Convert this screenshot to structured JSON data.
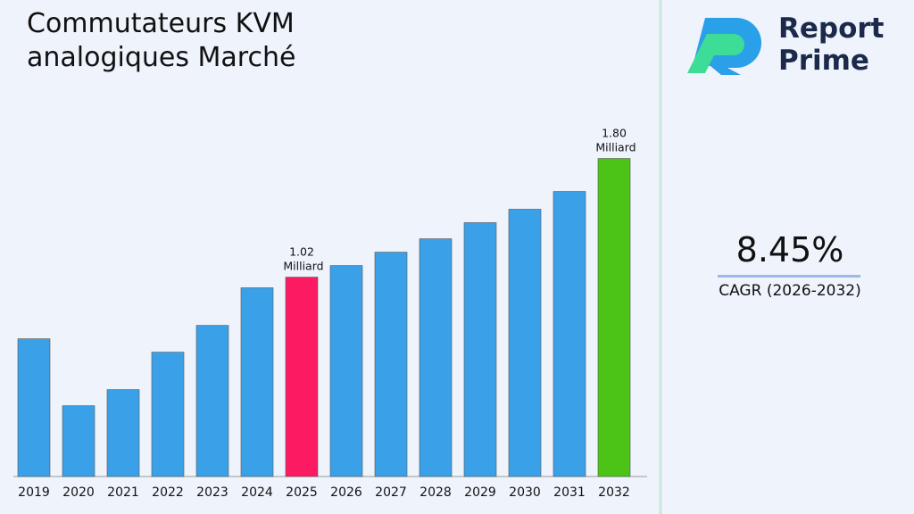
{
  "chart_data": {
    "type": "bar",
    "title": "Commutateurs KVM analogiques Marché",
    "categories": [
      "2019",
      "2020",
      "2021",
      "2022",
      "2023",
      "2024",
      "2025",
      "2026",
      "2027",
      "2028",
      "2029",
      "2030",
      "2031",
      "2032"
    ],
    "values": [
      0.615,
      0.175,
      0.281,
      0.527,
      0.703,
      0.95,
      1.02,
      1.096,
      1.184,
      1.272,
      1.378,
      1.466,
      1.583,
      1.8
    ],
    "value_labels": [
      null,
      null,
      null,
      null,
      null,
      null,
      "1.02 Milliard",
      null,
      null,
      null,
      null,
      null,
      null,
      "1.80 Milliard"
    ],
    "colors": [
      "#3aa0e8",
      "#3aa0e8",
      "#3aa0e8",
      "#3aa0e8",
      "#3aa0e8",
      "#3aa0e8",
      "#fc1a62",
      "#3aa0e8",
      "#3aa0e8",
      "#3aa0e8",
      "#3aa0e8",
      "#3aa0e8",
      "#3aa0e8",
      "#4cc417"
    ],
    "ylim": [
      -0.29,
      2.02
    ]
  },
  "side": {
    "cagr_value": "8.45%",
    "cagr_label": "CAGR (2026-2032)",
    "brand": "Report Prime"
  }
}
